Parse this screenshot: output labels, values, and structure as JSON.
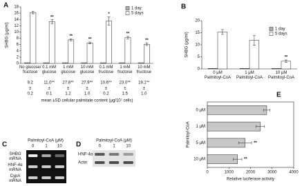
{
  "chart_data": [
    {
      "panel": "A",
      "type": "bar",
      "ylabel": "SHBG (μg/ml)",
      "categories": [
        "No glucose/\nfructose",
        "0.1 mM\nglucose",
        "1 mM\nglucose",
        "10 mM\nglucose",
        "0.1 mM\nfructose",
        "1 mM\nfructose",
        "10 mM\nfructose"
      ],
      "series": [
        {
          "name": "1 day",
          "color": "#b0b0b0",
          "values": [
            0.2,
            0.2,
            0.2,
            0.2,
            0.2,
            0.2,
            0.2
          ]
        },
        {
          "name": "5 days",
          "color": "#ffffff",
          "values": [
            16.2,
            13.3,
            7.5,
            6.5,
            13.5,
            8.2,
            6.1
          ],
          "errors": [
            0.4,
            0.6,
            0.3,
            0.3,
            1.3,
            0.4,
            0.4
          ]
        }
      ],
      "significance": [
        null,
        "**",
        "**",
        "**",
        "*",
        "**",
        "**"
      ],
      "ylim": [
        0,
        18
      ],
      "yticks": [
        0,
        2,
        4,
        6,
        8,
        10,
        12,
        14,
        16,
        18
      ],
      "legend": "upper right",
      "table": {
        "mean": [
          "9.2",
          "11.0**",
          "27.8**",
          "27.9**",
          "10.6**",
          "23.0**",
          "19.1**"
        ],
        "plus_minus": "±",
        "sd": [
          "0.2",
          "0.1",
          "1.2",
          "1.0",
          "0.2",
          "1.5",
          "1.0"
        ],
        "caption": "mean ±SD cellular palmitate content (μg/10⁷ cells)"
      }
    },
    {
      "panel": "B",
      "type": "bar",
      "ylabel": "SHBG (μg/ml)",
      "categories": [
        "0 μM\nPalmitoyl-CoA",
        "1 μM\nPalmitoyl-CoA",
        "10 μM\nPalmitoyl-CoA"
      ],
      "series": [
        {
          "name": "1 day",
          "color": "#b0b0b0",
          "values": [
            0.2,
            0.2,
            0.2
          ]
        },
        {
          "name": "5 days",
          "color": "#ffffff",
          "values": [
            15.3,
            11.8,
            3.2
          ],
          "errors": [
            1.0,
            2.0,
            0.5
          ]
        }
      ],
      "significance": [
        null,
        null,
        "**"
      ],
      "ylim": [
        0,
        20
      ],
      "yticks": [
        0,
        5,
        10,
        15,
        20
      ],
      "legend": "upper right"
    },
    {
      "panel": "E",
      "type": "hbar",
      "ylabel": "Palmitoyl-CoA",
      "xlabel": "Relative luciferase activity",
      "categories": [
        "0 μM",
        "1 μM",
        "5 μM",
        "10 μM"
      ],
      "values": [
        2750,
        2450,
        1750,
        1400
      ],
      "errors": [
        150,
        200,
        300,
        200
      ],
      "color": "#c8c8c8",
      "significance": [
        null,
        null,
        "**",
        "**"
      ],
      "xlim": [
        0,
        4000
      ],
      "xticks": [
        0,
        1000,
        2000,
        3000,
        4000
      ]
    }
  ],
  "gels": [
    {
      "panel": "C",
      "title": "Palmitoyl-CoA (μM)",
      "lanes": [
        "0",
        "1",
        "10"
      ],
      "rows": [
        "SHBG\nmRNA",
        "HNF-4α\nmRNA",
        "CypA\nmRNA"
      ]
    },
    {
      "panel": "D",
      "title": "Palmitoyl-CoA (μM)",
      "lanes": [
        "0",
        "1",
        "10"
      ],
      "rows": [
        "HNF-4α",
        "Actin"
      ]
    }
  ]
}
